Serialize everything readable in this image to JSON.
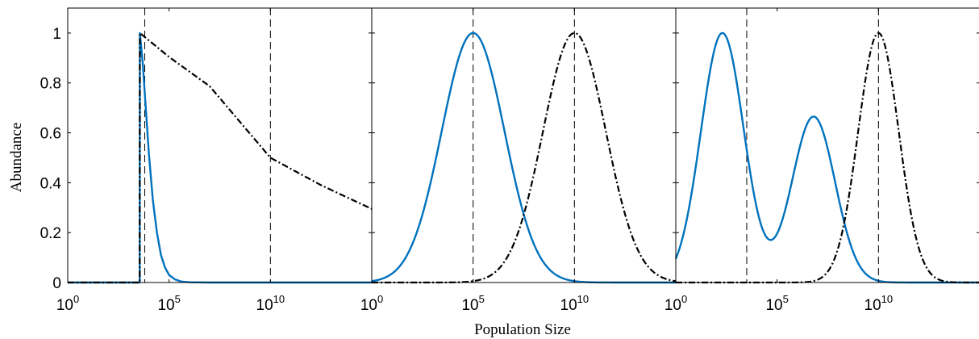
{
  "chart_data": {
    "type": "line",
    "ylabel": "Abundance",
    "xlabel": "Population Size",
    "x_scale": "log10",
    "y_ticks": [
      0,
      0.2,
      0.4,
      0.6,
      0.8,
      1
    ],
    "y_tick_labels": [
      "0",
      "0.2",
      "0.4",
      "0.6",
      "0.8",
      "1"
    ],
    "ylim": [
      0,
      1.1
    ],
    "colors": {
      "solid": "#0072BD",
      "dashdot": "#000000",
      "threshold": "#000000"
    },
    "panels": [
      {
        "id": "left",
        "xlim_log10": [
          0,
          15
        ],
        "x_ticks_log10": [
          0,
          5,
          10
        ],
        "x_tick_labels": [
          {
            "base": "10",
            "exp": "0"
          },
          {
            "base": "10",
            "exp": "5"
          },
          {
            "base": "10",
            "exp": "10"
          }
        ],
        "vlines_log10": [
          3.8,
          10
        ],
        "series": [
          {
            "style": "solid",
            "x_log10": [
              0,
              3.55,
              3.56,
              3.7,
              3.85,
              4.0,
              4.2,
              4.4,
              4.6,
              4.8,
              5.0,
              5.3,
              5.6,
              6.0,
              7,
              10,
              15
            ],
            "y": [
              0,
              0,
              1.0,
              0.88,
              0.7,
              0.52,
              0.33,
              0.2,
              0.11,
              0.06,
              0.03,
              0.012,
              0.004,
              0.001,
              0,
              0,
              0
            ]
          },
          {
            "style": "dashdot",
            "x_log10": [
              0,
              3.55,
              3.56,
              5,
              7,
              10,
              12.5,
              15
            ],
            "y": [
              0,
              0,
              1.0,
              0.904,
              0.787,
              0.5,
              0.39,
              0.295
            ]
          }
        ]
      },
      {
        "id": "middle",
        "xlim_log10": [
          0,
          15
        ],
        "x_ticks_log10": [
          0,
          5,
          10
        ],
        "x_tick_labels": [
          {
            "base": "10",
            "exp": "0"
          },
          {
            "base": "10",
            "exp": "5"
          },
          {
            "base": "10",
            "exp": "10"
          }
        ],
        "vlines_log10": [
          5,
          10
        ],
        "series": [
          {
            "style": "solid",
            "gaussian": {
              "mu": 5,
              "sigma": 1.55,
              "amp": 1
            }
          },
          {
            "style": "dashdot",
            "gaussian": {
              "mu": 10,
              "sigma": 1.55,
              "amp": 1
            }
          }
        ]
      },
      {
        "id": "right",
        "xlim_log10": [
          0,
          15
        ],
        "x_ticks_log10": [
          0,
          5,
          10
        ],
        "x_tick_labels": [
          {
            "base": "10",
            "exp": "0"
          },
          {
            "base": "10",
            "exp": "5"
          },
          {
            "base": "10",
            "exp": "10"
          }
        ],
        "vlines_log10": [
          3.5,
          10
        ],
        "series": [
          {
            "style": "solid",
            "gaussians": [
              {
                "mu": 2.3,
                "sigma": 1.06,
                "amp": 1
              },
              {
                "mu": 6.8,
                "sigma": 1.06,
                "amp": 0.665
              }
            ]
          },
          {
            "style": "dashdot",
            "gaussian": {
              "mu": 10,
              "sigma": 1.0,
              "amp": 1
            }
          }
        ]
      }
    ]
  }
}
